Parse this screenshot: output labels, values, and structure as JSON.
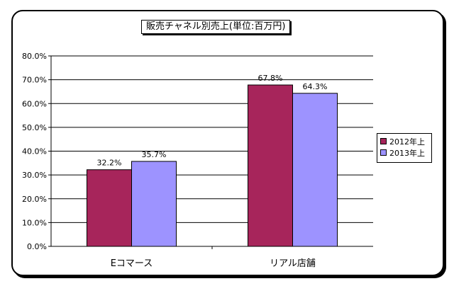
{
  "chart_data": {
    "type": "bar",
    "title": "販売チャネル別売上(単位:百万円)",
    "categories": [
      "Eコマース",
      "リアル店舗"
    ],
    "series": [
      {
        "name": "2012年上",
        "values": [
          32.2,
          67.8
        ],
        "labels": [
          "32.2%",
          "67.8%"
        ],
        "color": "#a7255b"
      },
      {
        "name": "2013年上",
        "values": [
          35.7,
          64.3
        ],
        "labels": [
          "35.7%",
          "64.3%"
        ],
        "color": "#9d93ff"
      }
    ],
    "ylim": [
      0,
      80
    ],
    "yticks": [
      "0.0%",
      "10.0%",
      "20.0%",
      "30.0%",
      "40.0%",
      "50.0%",
      "60.0%",
      "70.0%",
      "80.0%"
    ],
    "grid": true,
    "legend_position": "right"
  }
}
